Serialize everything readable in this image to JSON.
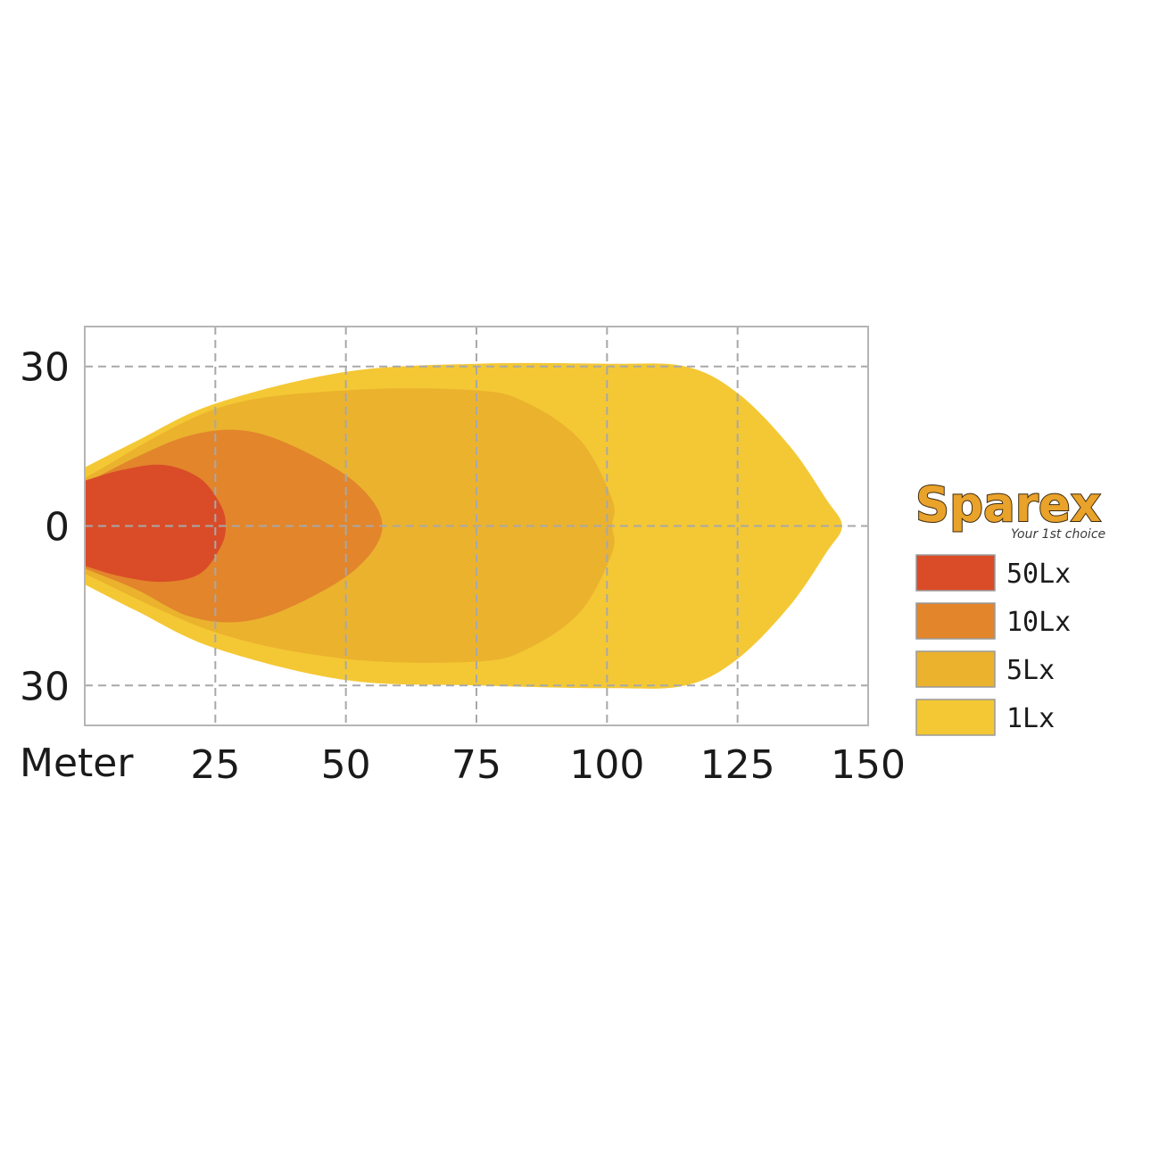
{
  "chart_data": {
    "type": "area",
    "xlabel": "Meter",
    "x_ticks": [
      25,
      50,
      75,
      100,
      125,
      150
    ],
    "y_ticks": [
      {
        "value": 30,
        "label": "30"
      },
      {
        "value": 0,
        "label": "0"
      },
      {
        "value": -30,
        "label": "30"
      }
    ],
    "xlim": [
      0,
      150
    ],
    "ylim": [
      -37.5,
      37.5
    ],
    "grid": true,
    "legend_position": "right",
    "series": [
      {
        "name": "1Lx",
        "color": "#F4C834",
        "points": [
          [
            0,
            11
          ],
          [
            10,
            16
          ],
          [
            25,
            23
          ],
          [
            50,
            29
          ],
          [
            75,
            30.5
          ],
          [
            100,
            30.5
          ],
          [
            115,
            30
          ],
          [
            125,
            25
          ],
          [
            135,
            15
          ],
          [
            142,
            5
          ],
          [
            145,
            0
          ],
          [
            142,
            -5
          ],
          [
            135,
            -15
          ],
          [
            125,
            -25
          ],
          [
            115,
            -30
          ],
          [
            100,
            -30.5
          ],
          [
            75,
            -30
          ],
          [
            50,
            -29
          ],
          [
            25,
            -23
          ],
          [
            10,
            -16
          ],
          [
            0,
            -11
          ]
        ]
      },
      {
        "name": "5Lx",
        "color": "#EBB22E",
        "points": [
          [
            0,
            9
          ],
          [
            25,
            22
          ],
          [
            50,
            25.5
          ],
          [
            75,
            25.5
          ],
          [
            85,
            23
          ],
          [
            95,
            16
          ],
          [
            101,
            5
          ],
          [
            101,
            0
          ],
          [
            101,
            -5
          ],
          [
            95,
            -16
          ],
          [
            85,
            -23
          ],
          [
            75,
            -25.5
          ],
          [
            50,
            -25
          ],
          [
            25,
            -20
          ],
          [
            0,
            -9
          ]
        ]
      },
      {
        "name": "10Lx",
        "color": "#E2852B",
        "points": [
          [
            0,
            8
          ],
          [
            10,
            13
          ],
          [
            20,
            17
          ],
          [
            30,
            18
          ],
          [
            40,
            15
          ],
          [
            52,
            8
          ],
          [
            57,
            0
          ],
          [
            52,
            -8
          ],
          [
            40,
            -15
          ],
          [
            30,
            -18
          ],
          [
            20,
            -17
          ],
          [
            10,
            -12
          ],
          [
            0,
            -8
          ]
        ]
      },
      {
        "name": "50Lx",
        "color": "#D94C27",
        "points": [
          [
            0,
            8.5
          ],
          [
            7,
            10.5
          ],
          [
            15,
            11.5
          ],
          [
            22,
            9
          ],
          [
            26,
            4
          ],
          [
            27,
            0
          ],
          [
            26,
            -4
          ],
          [
            22,
            -9
          ],
          [
            15,
            -10.5
          ],
          [
            7,
            -9.5
          ],
          [
            0,
            -7.5
          ]
        ]
      }
    ]
  },
  "logo": {
    "brand": "Sparex",
    "tagline": "Your 1st choice"
  }
}
